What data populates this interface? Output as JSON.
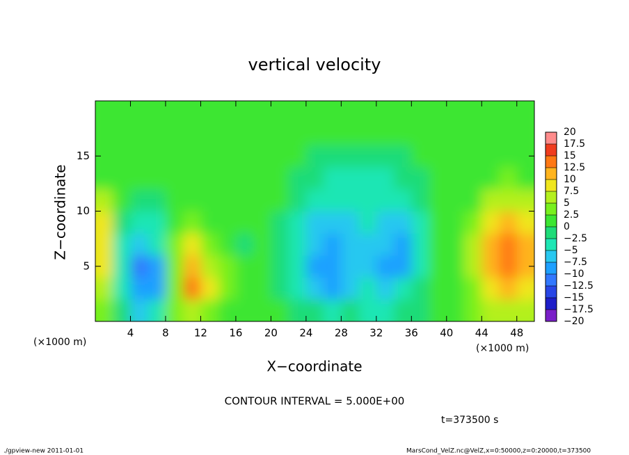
{
  "chart_data": {
    "type": "heatmap",
    "title": "vertical velocity",
    "x_label": "X−coordinate",
    "y_label": "Z−coordinate",
    "x_units": "(×1000 m)",
    "y_units": "(×1000 m)",
    "annotation": "CONTOUR INTERVAL = 5.000E+00",
    "time_label": "t=373500 s",
    "footer_left": "./gpview-new  2011-01-01",
    "footer_right": "MarsCond_VelZ.nc@VelZ,x=0:50000,z=0:20000,t=373500",
    "xlim": [
      0,
      50
    ],
    "ylim": [
      0,
      20
    ],
    "xticks": [
      4,
      8,
      12,
      16,
      20,
      24,
      28,
      32,
      36,
      40,
      44,
      48
    ],
    "yticks": [
      5,
      10,
      15
    ],
    "x": [
      1,
      3,
      5,
      7,
      9,
      11,
      13,
      15,
      17,
      19,
      21,
      23,
      25,
      27,
      29,
      31,
      33,
      35,
      37,
      39,
      41,
      43,
      45,
      47,
      49
    ],
    "y": [
      1,
      3,
      5,
      7,
      9,
      11,
      13,
      15,
      17,
      19
    ],
    "values": [
      [
        3,
        -2,
        -6,
        -5,
        3,
        6,
        4,
        2,
        1,
        1,
        0,
        -1,
        -2,
        -3,
        -2,
        -3,
        -3,
        -2,
        -1,
        0,
        1,
        3,
        5,
        6,
        6
      ],
      [
        6,
        -4,
        -10,
        -9,
        4,
        13,
        8,
        3,
        1,
        0,
        -1,
        -3,
        -6,
        -8,
        -6,
        -5,
        -6,
        -5,
        -2,
        0,
        1,
        4,
        8,
        10,
        9
      ],
      [
        8,
        -4,
        -11,
        -8,
        4,
        12,
        7,
        3,
        0,
        0,
        -2,
        -5,
        -8,
        -10,
        -7,
        -6,
        -8,
        -8,
        -4,
        0,
        2,
        6,
        11,
        13,
        12
      ],
      [
        9,
        -3,
        -6,
        -5,
        3,
        8,
        4,
        2,
        -1,
        0,
        -1,
        -4,
        -7,
        -9,
        -7,
        -6,
        -7,
        -9,
        -5,
        0,
        2,
        6,
        10,
        14,
        12
      ],
      [
        8,
        -2,
        -3,
        -3,
        2,
        3,
        2,
        1,
        1,
        0,
        -1,
        -3,
        -6,
        -7,
        -6,
        -5,
        -6,
        -7,
        -4,
        0,
        1,
        4,
        8,
        11,
        9
      ],
      [
        5,
        1,
        -2,
        -1,
        1,
        1,
        1,
        1,
        1,
        1,
        0,
        -2,
        -4,
        -5,
        -4,
        -4,
        -4,
        -4,
        -2,
        0,
        1,
        2,
        5,
        6,
        5
      ],
      [
        2,
        1,
        0,
        1,
        1,
        1,
        1,
        1,
        1,
        1,
        0,
        -1,
        -2,
        -3,
        -3,
        -3,
        -3,
        -2,
        -1,
        0,
        1,
        1,
        2,
        3,
        2
      ],
      [
        1,
        1,
        1,
        1,
        1,
        1,
        1,
        1,
        1,
        1,
        1,
        0,
        -1,
        -2,
        -2,
        -1,
        -1,
        -1,
        0,
        1,
        1,
        1,
        1,
        1,
        1
      ],
      [
        1,
        1,
        1,
        1,
        1,
        1,
        1,
        1,
        1,
        1,
        1,
        1,
        1,
        1,
        1,
        1,
        1,
        1,
        1,
        1,
        1,
        1,
        1,
        1,
        1
      ],
      [
        1,
        1,
        1,
        1,
        1,
        1,
        1,
        1,
        1,
        1,
        1,
        1,
        1,
        1,
        1,
        1,
        1,
        1,
        1,
        1,
        1,
        1,
        1,
        1,
        1
      ]
    ],
    "levels": [
      {
        "value": -20,
        "label": "−20"
      },
      {
        "value": -17.5,
        "label": "−17.5"
      },
      {
        "value": -15,
        "label": "−15"
      },
      {
        "value": -12.5,
        "label": "−12.5"
      },
      {
        "value": -10,
        "label": "−10"
      },
      {
        "value": -7.5,
        "label": "−7.5"
      },
      {
        "value": -5,
        "label": "−5"
      },
      {
        "value": -2.5,
        "label": "−2.5"
      },
      0,
      2.5,
      5,
      7.5,
      10,
      12.5,
      15,
      17.5,
      20
    ],
    "colors": [
      "#7a1fc8",
      "#1e1ec8",
      "#2846e6",
      "#3278ff",
      "#1ea0ff",
      "#28c8f0",
      "#1ee6b4",
      "#1edc78",
      "#3ce632",
      "#78f01e",
      "#b4f01e",
      "#f0e61e",
      "#ffb41e",
      "#ff7814",
      "#f03c1e",
      "#ff8c8c"
    ]
  }
}
